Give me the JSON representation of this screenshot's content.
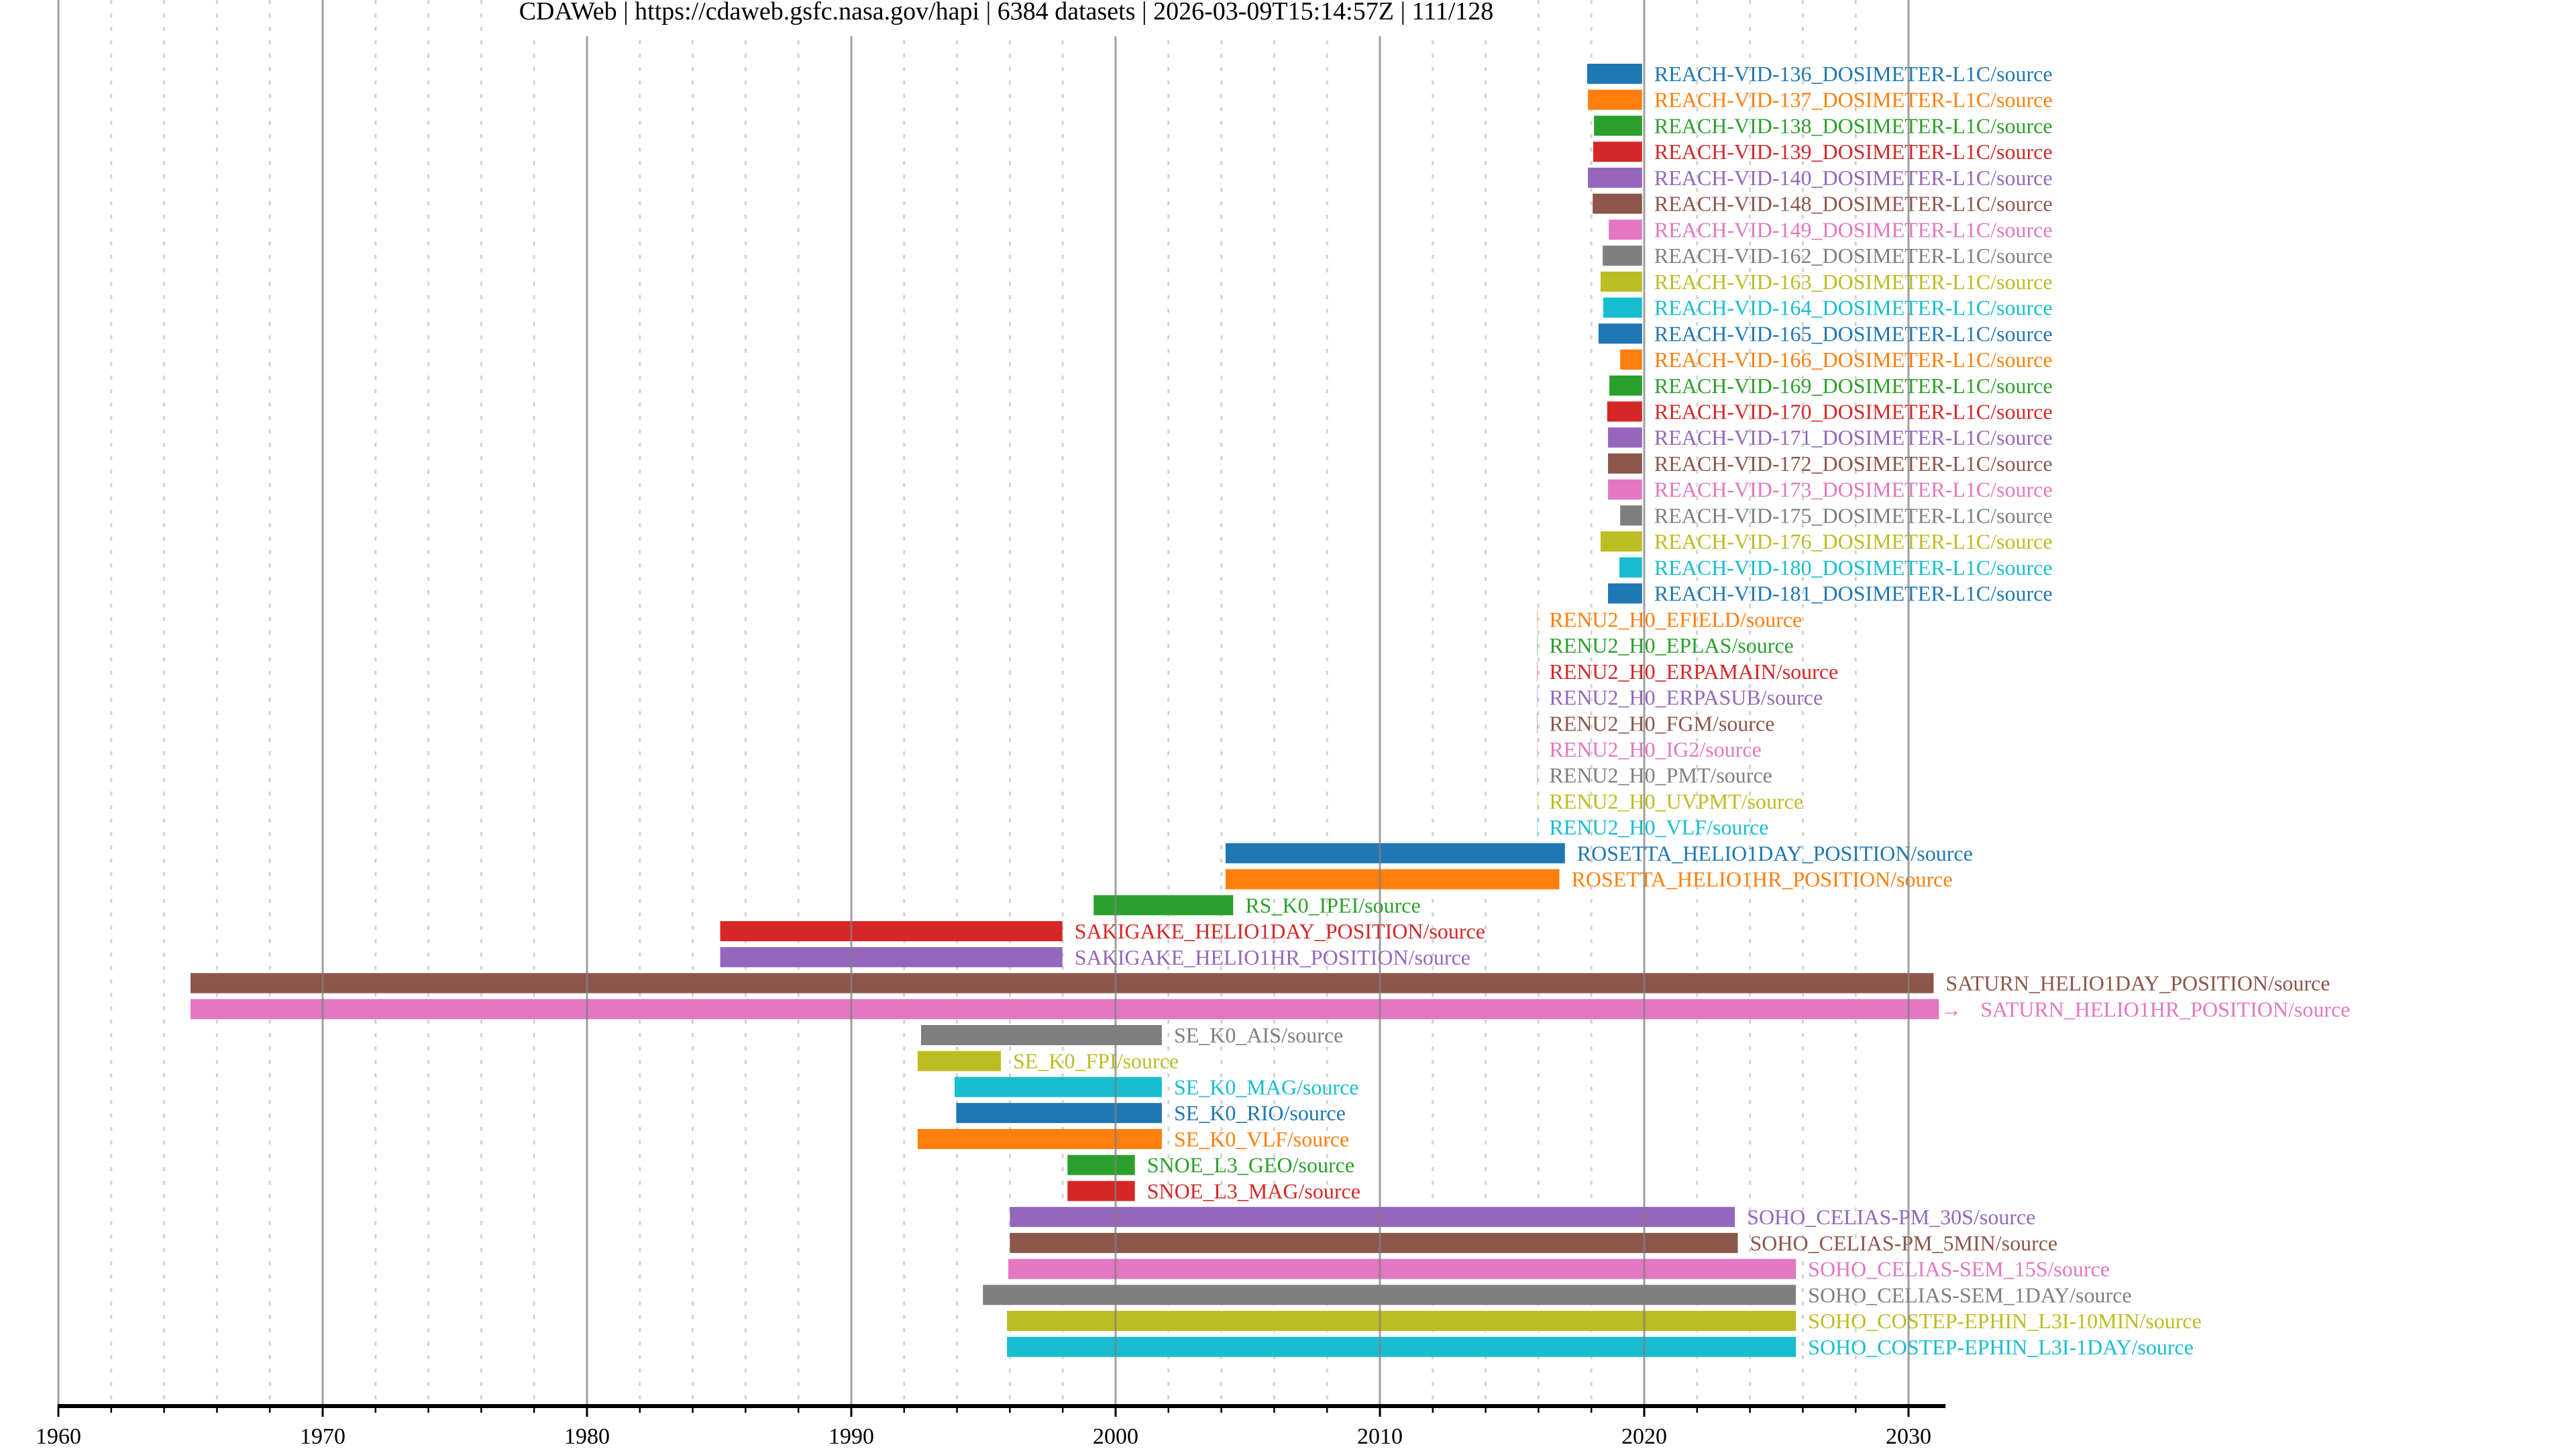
{
  "chart_data": {
    "type": "timeline",
    "title": "CDAWeb | https://cdaweb.gsfc.nasa.gov/hapi | 6384 datasets | 2026-03-09T15:14:57Z | 111/128",
    "xlabel": "",
    "ylabel": "",
    "xlim": [
      1960,
      2031.4
    ],
    "x_major_ticks": [
      1960,
      1970,
      1980,
      1990,
      2000,
      2010,
      2020,
      2030
    ],
    "x_minor_step_years": 2,
    "grid": true,
    "palette": [
      "#1f77b4",
      "#ff7f0e",
      "#2ca02c",
      "#d62728",
      "#9467bd",
      "#8c564b",
      "#e377c2",
      "#7f7f7f",
      "#bcbd22",
      "#17becf"
    ],
    "series": [
      {
        "name": "REACH-VID-136_DOSIMETER-L1C/source",
        "start": 2017.84,
        "end": 2019.92
      },
      {
        "name": "REACH-VID-137_DOSIMETER-L1C/source",
        "start": 2017.87,
        "end": 2019.92
      },
      {
        "name": "REACH-VID-138_DOSIMETER-L1C/source",
        "start": 2018.1,
        "end": 2019.92
      },
      {
        "name": "REACH-VID-139_DOSIMETER-L1C/source",
        "start": 2018.07,
        "end": 2019.92
      },
      {
        "name": "REACH-VID-140_DOSIMETER-L1C/source",
        "start": 2017.87,
        "end": 2019.92
      },
      {
        "name": "REACH-VID-148_DOSIMETER-L1C/source",
        "start": 2018.05,
        "end": 2019.92
      },
      {
        "name": "REACH-VID-149_DOSIMETER-L1C/source",
        "start": 2018.66,
        "end": 2019.92
      },
      {
        "name": "REACH-VID-162_DOSIMETER-L1C/source",
        "start": 2018.43,
        "end": 2019.92
      },
      {
        "name": "REACH-VID-163_DOSIMETER-L1C/source",
        "start": 2018.35,
        "end": 2019.92
      },
      {
        "name": "REACH-VID-164_DOSIMETER-L1C/source",
        "start": 2018.45,
        "end": 2019.92
      },
      {
        "name": "REACH-VID-165_DOSIMETER-L1C/source",
        "start": 2018.27,
        "end": 2019.92
      },
      {
        "name": "REACH-VID-166_DOSIMETER-L1C/source",
        "start": 2019.09,
        "end": 2019.92
      },
      {
        "name": "REACH-VID-169_DOSIMETER-L1C/source",
        "start": 2018.68,
        "end": 2019.92
      },
      {
        "name": "REACH-VID-170_DOSIMETER-L1C/source",
        "start": 2018.6,
        "end": 2019.92
      },
      {
        "name": "REACH-VID-171_DOSIMETER-L1C/source",
        "start": 2018.63,
        "end": 2019.92
      },
      {
        "name": "REACH-VID-172_DOSIMETER-L1C/source",
        "start": 2018.63,
        "end": 2019.92
      },
      {
        "name": "REACH-VID-173_DOSIMETER-L1C/source",
        "start": 2018.63,
        "end": 2019.92
      },
      {
        "name": "REACH-VID-175_DOSIMETER-L1C/source",
        "start": 2019.09,
        "end": 2019.92
      },
      {
        "name": "REACH-VID-176_DOSIMETER-L1C/source",
        "start": 2018.35,
        "end": 2019.92
      },
      {
        "name": "REACH-VID-180_DOSIMETER-L1C/source",
        "start": 2019.06,
        "end": 2019.92
      },
      {
        "name": "REACH-VID-181_DOSIMETER-L1C/source",
        "start": 2018.63,
        "end": 2019.92
      },
      {
        "name": "RENU2_H0_EFIELD/source",
        "start": 2015.95,
        "end": 2015.95
      },
      {
        "name": "RENU2_H0_EPLAS/source",
        "start": 2015.95,
        "end": 2015.95
      },
      {
        "name": "RENU2_H0_ERPAMAIN/source",
        "start": 2015.95,
        "end": 2015.95
      },
      {
        "name": "RENU2_H0_ERPASUB/source",
        "start": 2015.95,
        "end": 2015.95
      },
      {
        "name": "RENU2_H0_FGM/source",
        "start": 2015.95,
        "end": 2015.95
      },
      {
        "name": "RENU2_H0_IG2/source",
        "start": 2015.95,
        "end": 2015.95
      },
      {
        "name": "RENU2_H0_PMT/source",
        "start": 2015.95,
        "end": 2015.95
      },
      {
        "name": "RENU2_H0_UVPMT/source",
        "start": 2015.95,
        "end": 2015.95
      },
      {
        "name": "RENU2_H0_VLF/source",
        "start": 2015.95,
        "end": 2015.95
      },
      {
        "name": "ROSETTA_HELIO1DAY_POSITION/source",
        "start": 2004.16,
        "end": 2017.0
      },
      {
        "name": "ROSETTA_HELIO1HR_POSITION/source",
        "start": 2004.16,
        "end": 2016.79
      },
      {
        "name": "RS_K0_IPEI/source",
        "start": 1999.17,
        "end": 2004.45
      },
      {
        "name": "SAKIGAKE_HELIO1DAY_POSITION/source",
        "start": 1985.04,
        "end": 1997.99
      },
      {
        "name": "SAKIGAKE_HELIO1HR_POSITION/source",
        "start": 1985.04,
        "end": 1997.99
      },
      {
        "name": "SATURN_HELIO1DAY_POSITION/source",
        "start": 1965.0,
        "end": 2030.95
      },
      {
        "name": "SATURN_HELIO1HR_POSITION/source",
        "start": 1965.0,
        "end": 2031.15,
        "continues": true,
        "marker": "→"
      },
      {
        "name": "SE_K0_AIS/source",
        "start": 1992.64,
        "end": 2001.75
      },
      {
        "name": "SE_K0_FPI/source",
        "start": 1992.51,
        "end": 1995.66
      },
      {
        "name": "SE_K0_MAG/source",
        "start": 1993.91,
        "end": 2001.75
      },
      {
        "name": "SE_K0_RIO/source",
        "start": 1993.97,
        "end": 2001.75
      },
      {
        "name": "SE_K0_VLF/source",
        "start": 1992.51,
        "end": 2001.75
      },
      {
        "name": "SNOE_L3_GEO/source",
        "start": 1998.18,
        "end": 2000.73
      },
      {
        "name": "SNOE_L3_MAG/source",
        "start": 1998.18,
        "end": 2000.73
      },
      {
        "name": "SOHO_CELIAS-PM_30S/source",
        "start": 1996.0,
        "end": 2023.43
      },
      {
        "name": "SOHO_CELIAS-PM_5MIN/source",
        "start": 1996.0,
        "end": 2023.54
      },
      {
        "name": "SOHO_CELIAS-SEM_15S/source",
        "start": 1995.94,
        "end": 2025.74
      },
      {
        "name": "SOHO_CELIAS-SEM_1DAY/source",
        "start": 1994.98,
        "end": 2025.74
      },
      {
        "name": "SOHO_COSTEP-EPHIN_L3I-10MIN/source",
        "start": 1995.89,
        "end": 2025.74
      },
      {
        "name": "SOHO_COSTEP-EPHIN_L3I-1DAY/source",
        "start": 1995.89,
        "end": 2025.74
      }
    ]
  }
}
